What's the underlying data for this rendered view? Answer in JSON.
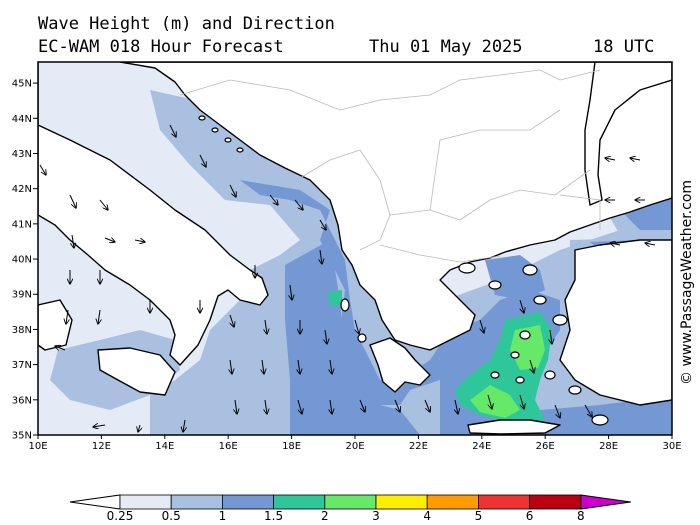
{
  "header": {
    "title": "Wave Height (m) and Direction",
    "model": "EC-WAM 018 Hour Forecast",
    "date": "Thu 01 May 2025",
    "time": "18 UTC"
  },
  "credit": "© www.PassageWeather.com",
  "map": {
    "lat_labels": [
      "35N",
      "36N",
      "37N",
      "38N",
      "39N",
      "40N",
      "41N",
      "42N",
      "43N",
      "44N",
      "45N"
    ],
    "lon_labels": [
      "10E",
      "12E",
      "14E",
      "16E",
      "18E",
      "20E",
      "22E",
      "24E",
      "26E",
      "28E",
      "30E"
    ],
    "lat_range": [
      35,
      45.6
    ],
    "lon_range": [
      10,
      30
    ]
  },
  "legend": {
    "labels": [
      "0.25",
      "0.5",
      "1",
      "1.5",
      "2",
      "3",
      "4",
      "5",
      "6",
      "8"
    ],
    "colors": [
      "#e4ebf6",
      "#a9c0e0",
      "#7398d3",
      "#2fc79a",
      "#66e868",
      "#ffee00",
      "#ff9a00",
      "#ee3333",
      "#bb0011",
      "#cc00cc"
    ]
  },
  "wave_colors": {
    "sea_lowest": "#ffffff",
    "sea_0_25": "#e4ebf6",
    "sea_0_5": "#a9c0e0",
    "sea_1": "#7398d3",
    "sea_1_5": "#2fc79a",
    "sea_2": "#66e868"
  }
}
